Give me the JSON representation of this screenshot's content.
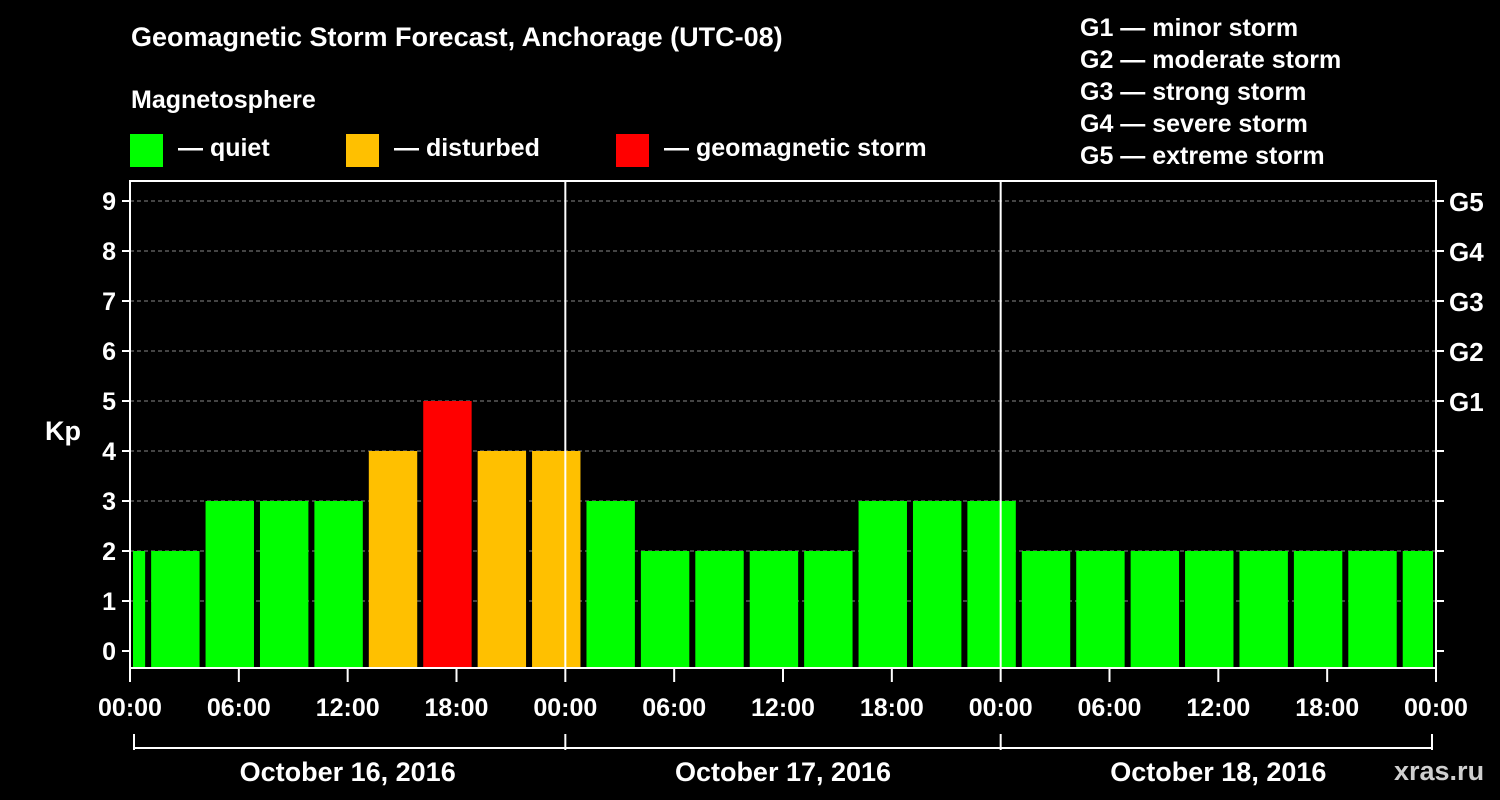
{
  "header": {
    "title": "Geomagnetic Storm Forecast, Anchorage (UTC-08)",
    "subtitle": "Magnetosphere"
  },
  "legend": [
    {
      "label": "— quiet",
      "color": "#00ff00"
    },
    {
      "label": "— disturbed",
      "color": "#ffc000"
    },
    {
      "label": "— geomagnetic storm",
      "color": "#ff0000"
    }
  ],
  "g_scale": [
    "G1 — minor storm",
    "G2 — moderate storm",
    "G3 — strong storm",
    "G4 — severe storm",
    "G5 — extreme storm"
  ],
  "credit": "xras.ru",
  "colors": {
    "quiet": "#00ff00",
    "disturbed": "#ffc000",
    "storm": "#ff0000",
    "background": "#000000"
  },
  "chart_data": {
    "type": "bar",
    "title": "Geomagnetic Storm Forecast, Anchorage (UTC-08)",
    "ylabel": "Kp",
    "ylim": [
      0,
      9
    ],
    "yticks": [
      "0",
      "1",
      "2",
      "3",
      "4",
      "5",
      "6",
      "7",
      "8",
      "9"
    ],
    "right_ticks": [
      {
        "kp": 5,
        "label": "G1"
      },
      {
        "kp": 6,
        "label": "G2"
      },
      {
        "kp": 7,
        "label": "G3"
      },
      {
        "kp": 8,
        "label": "G4"
      },
      {
        "kp": 9,
        "label": "G5"
      }
    ],
    "x_hours_range": [
      0,
      72
    ],
    "xtick_labels": [
      "00:00",
      "06:00",
      "12:00",
      "18:00",
      "00:00",
      "06:00",
      "12:00",
      "18:00",
      "00:00",
      "06:00",
      "12:00",
      "18:00",
      "00:00"
    ],
    "dates": [
      "October 16, 2016",
      "October 17, 2016",
      "October 18, 2016"
    ],
    "bars": [
      {
        "start": 0,
        "end": 1,
        "kp": 2,
        "level": "quiet"
      },
      {
        "start": 1,
        "end": 4,
        "kp": 2,
        "level": "quiet"
      },
      {
        "start": 4,
        "end": 7,
        "kp": 3,
        "level": "quiet"
      },
      {
        "start": 7,
        "end": 10,
        "kp": 3,
        "level": "quiet"
      },
      {
        "start": 10,
        "end": 13,
        "kp": 3,
        "level": "quiet"
      },
      {
        "start": 13,
        "end": 16,
        "kp": 4,
        "level": "disturbed"
      },
      {
        "start": 16,
        "end": 19,
        "kp": 5,
        "level": "storm"
      },
      {
        "start": 19,
        "end": 22,
        "kp": 4,
        "level": "disturbed"
      },
      {
        "start": 22,
        "end": 25,
        "kp": 4,
        "level": "disturbed"
      },
      {
        "start": 25,
        "end": 28,
        "kp": 3,
        "level": "quiet"
      },
      {
        "start": 28,
        "end": 31,
        "kp": 2,
        "level": "quiet"
      },
      {
        "start": 31,
        "end": 34,
        "kp": 2,
        "level": "quiet"
      },
      {
        "start": 34,
        "end": 37,
        "kp": 2,
        "level": "quiet"
      },
      {
        "start": 37,
        "end": 40,
        "kp": 2,
        "level": "quiet"
      },
      {
        "start": 40,
        "end": 43,
        "kp": 3,
        "level": "quiet"
      },
      {
        "start": 43,
        "end": 46,
        "kp": 3,
        "level": "quiet"
      },
      {
        "start": 46,
        "end": 49,
        "kp": 3,
        "level": "quiet"
      },
      {
        "start": 49,
        "end": 52,
        "kp": 2,
        "level": "quiet"
      },
      {
        "start": 52,
        "end": 55,
        "kp": 2,
        "level": "quiet"
      },
      {
        "start": 55,
        "end": 58,
        "kp": 2,
        "level": "quiet"
      },
      {
        "start": 58,
        "end": 61,
        "kp": 2,
        "level": "quiet"
      },
      {
        "start": 61,
        "end": 64,
        "kp": 2,
        "level": "quiet"
      },
      {
        "start": 64,
        "end": 67,
        "kp": 2,
        "level": "quiet"
      },
      {
        "start": 67,
        "end": 70,
        "kp": 2,
        "level": "quiet"
      },
      {
        "start": 70,
        "end": 72,
        "kp": 2,
        "level": "quiet"
      }
    ]
  }
}
